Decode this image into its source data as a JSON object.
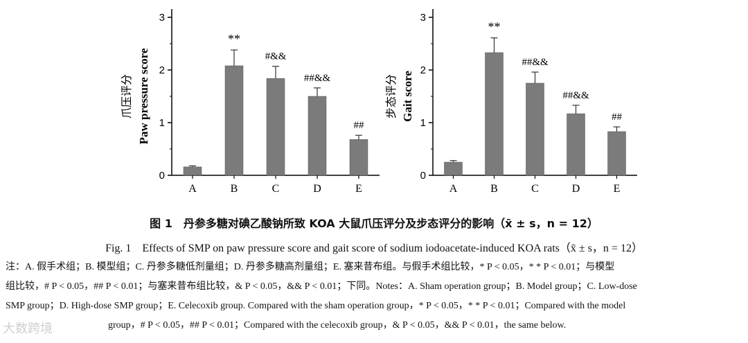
{
  "chart_data": [
    {
      "type": "bar",
      "ylabel_cn": "爪压评分",
      "ylabel": "Paw pressure score",
      "categories": [
        "A",
        "B",
        "C",
        "D",
        "E"
      ],
      "values": [
        0.16,
        2.08,
        1.84,
        1.5,
        0.68
      ],
      "errors": [
        0.02,
        0.3,
        0.23,
        0.16,
        0.08
      ],
      "annotations": [
        "",
        "**",
        "#&&",
        "##&&",
        "##"
      ],
      "ylim": [
        0,
        3
      ],
      "yticks": [
        "0",
        "1",
        "2",
        "3"
      ]
    },
    {
      "type": "bar",
      "ylabel_cn": "步态评分",
      "ylabel": "Gait score",
      "categories": [
        "A",
        "B",
        "C",
        "D",
        "E"
      ],
      "values": [
        0.25,
        2.33,
        1.75,
        1.17,
        0.83
      ],
      "errors": [
        0.03,
        0.28,
        0.21,
        0.16,
        0.09
      ],
      "annotations": [
        "",
        "**",
        "##&&",
        "##&&",
        "##"
      ],
      "ylim": [
        0,
        3
      ],
      "yticks": [
        "0",
        "1",
        "2",
        "3"
      ]
    }
  ],
  "caption_cn": "图 1　丹参多糖对碘乙酸钠所致 KOA 大鼠爪压评分及步态评分的影响（x̄ ± s，n = 12）",
  "caption_en": "Fig. 1　Effects of SMP on paw pressure score and gait score of sodium iodoacetate-induced KOA rats（x̄ ± s，n = 12）",
  "notes": [
    "注：A. 假手术组；B. 模型组；C. 丹参多糖低剂量组；D. 丹参多糖高剂量组；E. 塞来昔布组。与假手术组比较，* P < 0.05，* * P < 0.01；与模型",
    "组比较，# P < 0.05，## P < 0.01；与塞来昔布组比较，& P < 0.05，&& P < 0.01；下同。Notes：A. Sham operation group；B. Model group；C. Low-dose",
    "SMP group；D. High-dose SMP group；E. Celecoxib group. Compared with the sham operation group，* P < 0.05，* * P < 0.01；Compared with the model",
    "group，# P < 0.05，## P < 0.01；Compared with the celecoxib group，& P < 0.05，&& P < 0.01，the same below."
  ],
  "watermark": "大数跨境",
  "colors": {
    "bar": "#7b7b7b",
    "axis": "#000000"
  }
}
